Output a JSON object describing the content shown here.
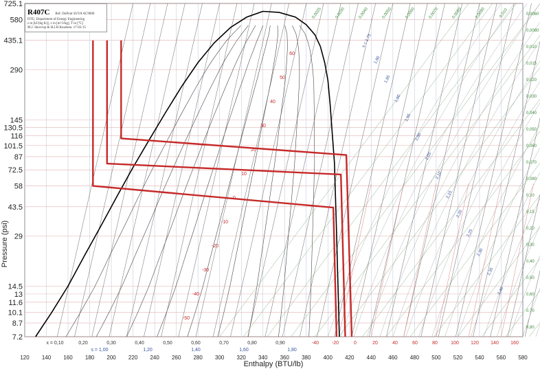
{
  "header": {
    "refrigerant": "R407C",
    "reference": "Ref: DuPont SUVA AC9000",
    "info_lines": [
      "DTU, Department of Energy Engineering",
      "s in [kJ/(kg K)], v in [m^3/kg], T in [°C]",
      "M.J. Skovrup & H.J.H Knudsen. 17-03-15"
    ]
  },
  "chart_data": {
    "type": "line",
    "title": "R407C",
    "xlabel": "Enthalpy (BTU/lb)",
    "ylabel": "Pressure (psi)",
    "y_scale": "log",
    "xlim": [
      120,
      580
    ],
    "ylim": [
      7.2,
      725.1
    ],
    "x_ticks": [
      120,
      140,
      160,
      180,
      200,
      220,
      240,
      260,
      280,
      300,
      320,
      340,
      360,
      380,
      400,
      420,
      440,
      460,
      480,
      500,
      520,
      540,
      560,
      580
    ],
    "y_ticks": [
      7.2,
      8.7,
      10.1,
      11.6,
      13,
      14.5,
      29,
      43.5,
      58,
      72.5,
      87,
      101.5,
      116,
      130.5,
      145,
      290,
      435.1,
      580,
      725.1
    ],
    "quality_labels": [
      "x = 0,10",
      "0,20",
      "0,30",
      "0,40",
      "0,50",
      "0,60",
      "0,70",
      "0,80",
      "0,90"
    ],
    "entropy_labels": [
      "s = 1,00",
      "1,20",
      "1,40",
      "1,60",
      "1,80"
    ],
    "temperature_labels_bottom": [
      "-40",
      "-20",
      "0",
      "20",
      "40",
      "60",
      "80",
      "100",
      "120",
      "140",
      "160"
    ],
    "isotherm_labels_inside": [
      "60",
      "50",
      "40",
      "30",
      "20",
      "10",
      "0",
      "-10",
      "-20",
      "-30",
      "-40",
      "-50"
    ],
    "volume_labels_right": [
      "0,0060",
      "0,0080",
      "0,010",
      "0,015",
      "0,020",
      "0,030",
      "0,040",
      "0,050",
      "0,060",
      "0,070",
      "0,080",
      "0,10",
      "0,15",
      "0,20",
      "0,30",
      "0,40",
      "0,50",
      "0,60",
      "0,70",
      "0,80"
    ],
    "volume_labels_top": [
      "0,0025",
      "0,0030",
      "0,0040",
      "0,0050",
      "0,0060",
      "0,0070",
      "0,0080",
      "0,0090",
      "0,010"
    ],
    "entropy_labels_vapor": [
      "s = 1,75",
      "1,80",
      "1,85",
      "1,90",
      "1,95",
      "2,00",
      "2,05",
      "2,10",
      "2,15",
      "2,20",
      "2,25",
      "2,30",
      "2,35",
      "2,40"
    ],
    "saturation_dome": {
      "liquid": [
        [
          130,
          7.2
        ],
        [
          145,
          10.1
        ],
        [
          160,
          14.5
        ],
        [
          175,
          22
        ],
        [
          190,
          33
        ],
        [
          205,
          50
        ],
        [
          220,
          75
        ],
        [
          235,
          110
        ],
        [
          250,
          160
        ],
        [
          265,
          230
        ],
        [
          280,
          320
        ],
        [
          295,
          420
        ],
        [
          310,
          520
        ],
        [
          325,
          600
        ],
        [
          340,
          650
        ]
      ],
      "vapor": [
        [
          340,
          650
        ],
        [
          355,
          640
        ],
        [
          370,
          600
        ],
        [
          380,
          540
        ],
        [
          388,
          470
        ],
        [
          393,
          400
        ],
        [
          397,
          320
        ],
        [
          400,
          250
        ],
        [
          402,
          180
        ],
        [
          404,
          120
        ],
        [
          406,
          80
        ],
        [
          407,
          50
        ],
        [
          408,
          30
        ],
        [
          409,
          17
        ],
        [
          410,
          10
        ],
        [
          410.5,
          7.2
        ]
      ]
    },
    "series": [
      {
        "name": "",
        "color": "#c62828",
        "points": [
          [
            183,
            435.1
          ],
          [
            183,
            58
          ],
          [
            405,
            43
          ],
          [
            408,
            7.2
          ]
        ]
      },
      {
        "name": "",
        "color": "#c62828",
        "points": [
          [
            196,
            435.1
          ],
          [
            196,
            79
          ],
          [
            412,
            68
          ],
          [
            416,
            7.2
          ]
        ]
      },
      {
        "name": "",
        "color": "#c62828",
        "points": [
          [
            209,
            435.1
          ],
          [
            209,
            112
          ],
          [
            417,
            89
          ],
          [
            422,
            7.2
          ]
        ]
      }
    ]
  }
}
